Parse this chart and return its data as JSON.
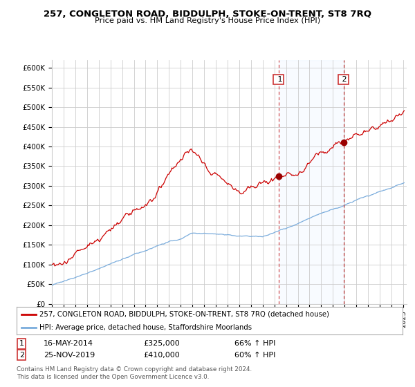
{
  "title1": "257, CONGLETON ROAD, BIDDULPH, STOKE-ON-TRENT, ST8 7RQ",
  "title2": "Price paid vs. HM Land Registry's House Price Index (HPI)",
  "ylabel_ticks": [
    "£0",
    "£50K",
    "£100K",
    "£150K",
    "£200K",
    "£250K",
    "£300K",
    "£350K",
    "£400K",
    "£450K",
    "£500K",
    "£550K",
    "£600K"
  ],
  "ytick_values": [
    0,
    50000,
    100000,
    150000,
    200000,
    250000,
    300000,
    350000,
    400000,
    450000,
    500000,
    550000,
    600000
  ],
  "ylim": [
    0,
    620000
  ],
  "xlim_start": 1995.0,
  "xlim_end": 2025.3,
  "purchase1_date": 2014.37,
  "purchase1_value": 325000,
  "purchase2_date": 2019.9,
  "purchase2_value": 410000,
  "red_color": "#cc0000",
  "blue_color": "#7aacdc",
  "shade_color": "#ddeeff",
  "vline_color": "#cc3333",
  "grid_color": "#cccccc",
  "legend_line1": "257, CONGLETON ROAD, BIDDULPH, STOKE-ON-TRENT, ST8 7RQ (detached house)",
  "legend_line2": "HPI: Average price, detached house, Staffordshire Moorlands",
  "table_row1": [
    "1",
    "16-MAY-2014",
    "£325,000",
    "66% ↑ HPI"
  ],
  "table_row2": [
    "2",
    "25-NOV-2019",
    "£410,000",
    "60% ↑ HPI"
  ],
  "footer": "Contains HM Land Registry data © Crown copyright and database right 2024.\nThis data is licensed under the Open Government Licence v3.0.",
  "background_color": "#ffffff",
  "plot_bg_color": "#ffffff"
}
